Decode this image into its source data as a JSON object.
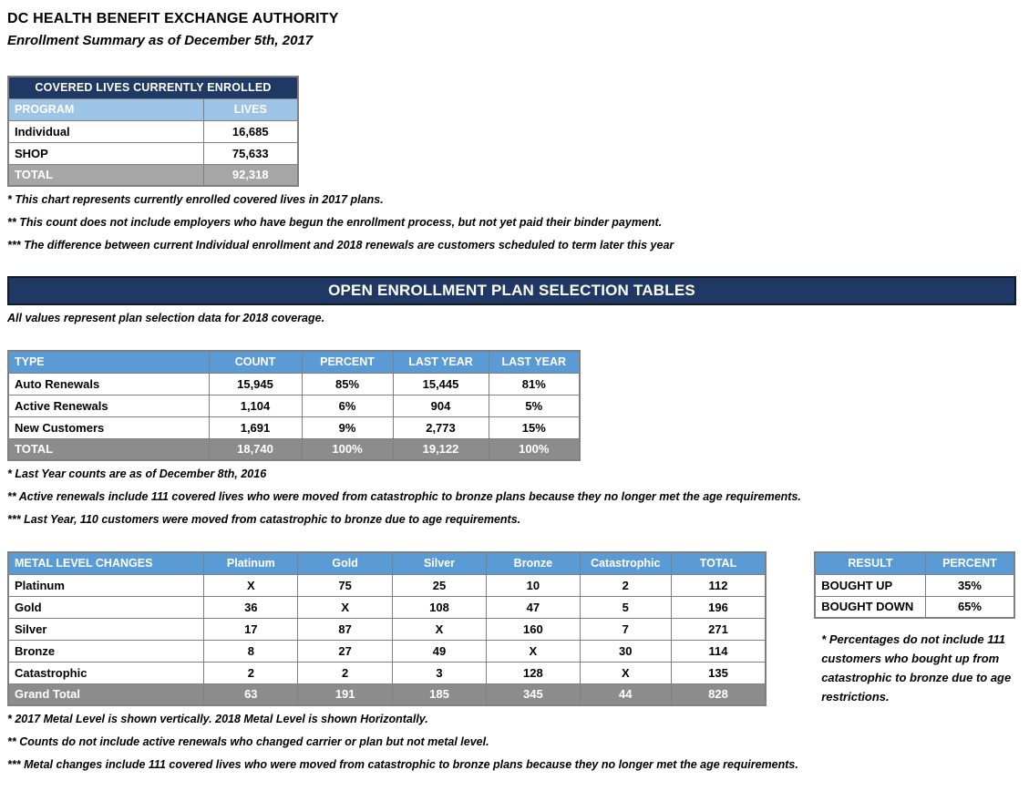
{
  "header": {
    "title": "DC HEALTH BENEFIT EXCHANGE AUTHORITY",
    "subtitle": "Enrollment Summary as of December 5th, 2017"
  },
  "covered_lives": {
    "title": "COVERED LIVES CURRENTLY ENROLLED",
    "columns": [
      "PROGRAM",
      "LIVES"
    ],
    "rows": [
      [
        "Individual",
        "16,685"
      ],
      [
        "SHOP",
        "75,633"
      ]
    ],
    "total": [
      "TOTAL",
      "92,318"
    ],
    "footnotes": [
      "* This chart represents currently enrolled covered lives in 2017 plans.",
      "** This count does not include employers who have begun the enrollment process, but not yet paid their binder payment.",
      "*** The difference between current Individual enrollment and 2018 renewals are customers scheduled to term later this year"
    ]
  },
  "banner": {
    "title": "OPEN ENROLLMENT PLAN SELECTION TABLES",
    "note": "All values represent plan selection data for 2018 coverage."
  },
  "plan_selection": {
    "columns": [
      "TYPE",
      "COUNT",
      "PERCENT",
      "LAST YEAR",
      "LAST YEAR"
    ],
    "rows": [
      [
        "Auto Renewals",
        "15,945",
        "85%",
        "15,445",
        "81%"
      ],
      [
        "Active Renewals",
        "1,104",
        "6%",
        "904",
        "5%"
      ],
      [
        "New Customers",
        "1,691",
        "9%",
        "2,773",
        "15%"
      ]
    ],
    "total": [
      "TOTAL",
      "18,740",
      "100%",
      "19,122",
      "100%"
    ],
    "footnotes": [
      "* Last Year counts are as of December 8th, 2016",
      "** Active renewals include 111 covered lives who were moved from catastrophic to bronze plans because they no longer met the age requirements.",
      "*** Last Year, 110 customers were moved from catastrophic to bronze due to age requirements."
    ]
  },
  "metal_changes": {
    "columns": [
      "METAL LEVEL CHANGES",
      "Platinum",
      "Gold",
      "Silver",
      "Bronze",
      "Catastrophic",
      "TOTAL"
    ],
    "rows": [
      [
        "Platinum",
        "X",
        "75",
        "25",
        "10",
        "2",
        "112"
      ],
      [
        "Gold",
        "36",
        "X",
        "108",
        "47",
        "5",
        "196"
      ],
      [
        "Silver",
        "17",
        "87",
        "X",
        "160",
        "7",
        "271"
      ],
      [
        "Bronze",
        "8",
        "27",
        "49",
        "X",
        "30",
        "114"
      ],
      [
        "Catastrophic",
        "2",
        "2",
        "3",
        "128",
        "X",
        "135"
      ]
    ],
    "total": [
      "Grand Total",
      "63",
      "191",
      "185",
      "345",
      "44",
      "828"
    ],
    "footnotes": [
      "* 2017 Metal Level is shown vertically. 2018 Metal Level is shown Horizontally.",
      "** Counts do not include active renewals who changed carrier or plan but not metal level.",
      "*** Metal changes include 111 covered lives who were moved from catastrophic to bronze plans because they no longer met the age requirements."
    ]
  },
  "result": {
    "columns": [
      "RESULT",
      "PERCENT"
    ],
    "rows": [
      [
        "BOUGHT UP",
        "35%"
      ],
      [
        "BOUGHT DOWN",
        "65%"
      ]
    ],
    "footnote": "* Percentages do not include 111 customers who bought up from catastrophic to bronze due to age restrictions."
  },
  "colors": {
    "navy": "#1F3864",
    "blue": "#5B9BD5",
    "lightblue": "#9DC3E6",
    "gray": "#8C8C8C",
    "lightgray": "#A6A6A6",
    "border": "#808080"
  }
}
